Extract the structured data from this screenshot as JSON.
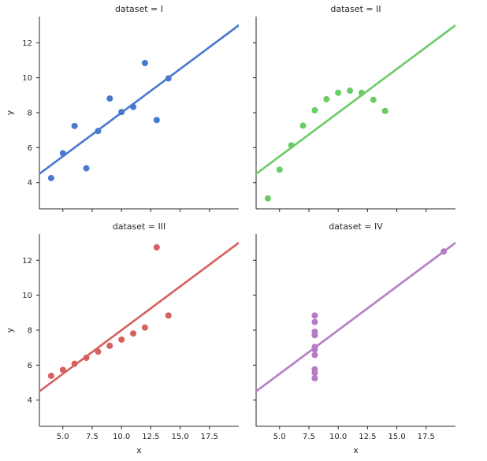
{
  "chart_data": [
    {
      "type": "scatter",
      "title": "dataset = I",
      "xlabel": "",
      "ylabel": "y",
      "color": "#4878cf",
      "x": [
        4,
        5,
        6,
        7,
        8,
        9,
        10,
        11,
        12,
        13,
        14
      ],
      "y": [
        4.26,
        5.68,
        7.24,
        4.82,
        6.95,
        8.81,
        8.04,
        8.33,
        10.84,
        7.58,
        9.96
      ],
      "fit_line": {
        "x": [
          3,
          20
        ],
        "y": [
          4.5,
          13.0
        ]
      },
      "xlim": [
        3,
        20
      ],
      "ylim": [
        2.5,
        13.5
      ],
      "xticks": [
        5.0,
        7.5,
        10.0,
        12.5,
        15.0,
        17.5
      ],
      "xtick_labels": [
        "",
        "",
        "",
        "",
        "",
        ""
      ],
      "yticks": [
        4,
        6,
        8,
        10,
        12
      ],
      "ytick_labels": [
        "4",
        "6",
        "8",
        "10",
        "12"
      ]
    },
    {
      "type": "scatter",
      "title": "dataset = II",
      "xlabel": "",
      "ylabel": "",
      "color": "#6acc65",
      "x": [
        4,
        5,
        6,
        7,
        8,
        9,
        10,
        11,
        12,
        13,
        14
      ],
      "y": [
        3.1,
        4.74,
        6.13,
        7.26,
        8.14,
        8.77,
        9.14,
        9.26,
        9.13,
        8.74,
        8.1
      ],
      "fit_line": {
        "x": [
          3,
          20
        ],
        "y": [
          4.5,
          13.0
        ]
      },
      "xlim": [
        3,
        20
      ],
      "ylim": [
        2.5,
        13.5
      ],
      "xticks": [
        5.0,
        7.5,
        10.0,
        12.5,
        15.0,
        17.5
      ],
      "xtick_labels": [
        "",
        "",
        "",
        "",
        "",
        ""
      ],
      "yticks": [
        4,
        6,
        8,
        10,
        12
      ],
      "ytick_labels": [
        "",
        "",
        "",
        "",
        ""
      ]
    },
    {
      "type": "scatter",
      "title": "dataset = III",
      "xlabel": "x",
      "ylabel": "y",
      "color": "#d65f5f",
      "x": [
        4,
        5,
        6,
        7,
        8,
        9,
        10,
        11,
        12,
        13,
        14
      ],
      "y": [
        5.39,
        5.73,
        6.08,
        6.42,
        6.77,
        7.11,
        7.46,
        7.81,
        8.15,
        12.74,
        8.84
      ],
      "fit_line": {
        "x": [
          3,
          20
        ],
        "y": [
          4.5,
          13.0
        ]
      },
      "xlim": [
        3,
        20
      ],
      "ylim": [
        2.5,
        13.5
      ],
      "xticks": [
        5.0,
        7.5,
        10.0,
        12.5,
        15.0,
        17.5
      ],
      "xtick_labels": [
        "5.0",
        "7.5",
        "10.0",
        "12.5",
        "15.0",
        "17.5"
      ],
      "yticks": [
        4,
        6,
        8,
        10,
        12
      ],
      "ytick_labels": [
        "4",
        "6",
        "8",
        "10",
        "12"
      ]
    },
    {
      "type": "scatter",
      "title": "dataset = IV",
      "xlabel": "x",
      "ylabel": "",
      "color": "#b47cc7",
      "x": [
        8,
        8,
        8,
        8,
        8,
        8,
        8,
        8,
        8,
        8,
        19
      ],
      "y": [
        5.25,
        5.56,
        5.76,
        6.58,
        6.89,
        7.04,
        7.71,
        7.91,
        8.47,
        8.84,
        12.5
      ],
      "fit_line": {
        "x": [
          3,
          20
        ],
        "y": [
          4.5,
          13.0
        ]
      },
      "xlim": [
        3,
        20
      ],
      "ylim": [
        2.5,
        13.5
      ],
      "xticks": [
        5.0,
        7.5,
        10.0,
        12.5,
        15.0,
        17.5
      ],
      "xtick_labels": [
        "5.0",
        "7.5",
        "10.0",
        "12.5",
        "15.0",
        "17.5"
      ],
      "yticks": [
        4,
        6,
        8,
        10,
        12
      ],
      "ytick_labels": [
        "",
        "",
        "",
        "",
        ""
      ]
    }
  ]
}
